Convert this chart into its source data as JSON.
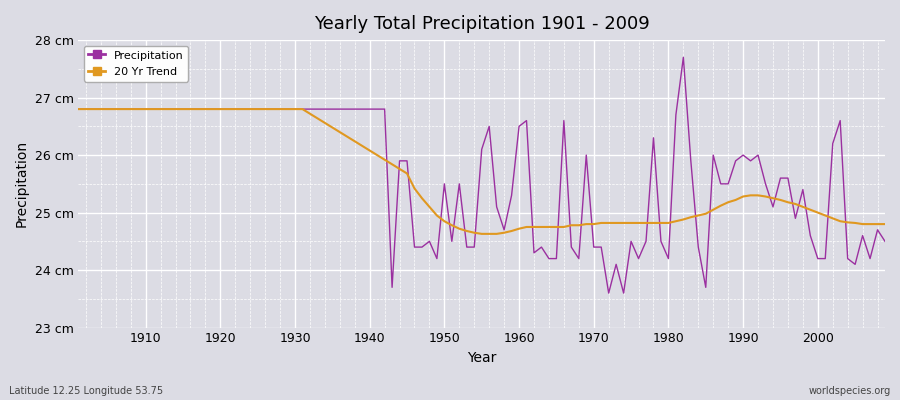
{
  "title": "Yearly Total Precipitation 1901 - 2009",
  "xlabel": "Year",
  "ylabel": "Precipitation",
  "subtitle": "Latitude 12.25 Longitude 53.75",
  "watermark": "worldspecies.org",
  "background_color": "#dcdce4",
  "plot_bg_color": "#dcdce4",
  "grid_color": "#ffffff",
  "precip_color": "#9b30a0",
  "trend_color": "#e09820",
  "ylim": [
    23.0,
    28.0
  ],
  "xlim": [
    1901,
    2009
  ],
  "yticks": [
    23,
    24,
    25,
    26,
    27,
    28
  ],
  "ytick_labels": [
    "23 cm",
    "24 cm",
    "25 cm",
    "26 cm",
    "27 cm",
    "28 cm"
  ],
  "xticks": [
    1910,
    1920,
    1930,
    1940,
    1950,
    1960,
    1970,
    1980,
    1990,
    2000
  ],
  "years": [
    1901,
    1902,
    1903,
    1904,
    1905,
    1906,
    1907,
    1908,
    1909,
    1910,
    1911,
    1912,
    1913,
    1914,
    1915,
    1916,
    1917,
    1918,
    1919,
    1920,
    1921,
    1922,
    1923,
    1924,
    1925,
    1926,
    1927,
    1928,
    1929,
    1930,
    1931,
    1932,
    1933,
    1934,
    1935,
    1936,
    1937,
    1938,
    1939,
    1940,
    1941,
    1942,
    1943,
    1944,
    1945,
    1946,
    1947,
    1948,
    1949,
    1950,
    1951,
    1952,
    1953,
    1954,
    1955,
    1956,
    1957,
    1958,
    1959,
    1960,
    1961,
    1962,
    1963,
    1964,
    1965,
    1966,
    1967,
    1968,
    1969,
    1970,
    1971,
    1972,
    1973,
    1974,
    1975,
    1976,
    1977,
    1978,
    1979,
    1980,
    1981,
    1982,
    1983,
    1984,
    1985,
    1986,
    1987,
    1988,
    1989,
    1990,
    1991,
    1992,
    1993,
    1994,
    1995,
    1996,
    1997,
    1998,
    1999,
    2000,
    2001,
    2002,
    2003,
    2004,
    2005,
    2006,
    2007,
    2008,
    2009
  ],
  "precip": [
    26.8,
    26.8,
    26.8,
    26.8,
    26.8,
    26.8,
    26.8,
    26.8,
    26.8,
    26.8,
    26.8,
    26.8,
    26.8,
    26.8,
    26.8,
    26.8,
    26.8,
    26.8,
    26.8,
    26.8,
    26.8,
    26.8,
    26.8,
    26.8,
    26.8,
    26.8,
    26.8,
    26.8,
    26.8,
    26.8,
    26.8,
    26.8,
    26.8,
    26.8,
    26.8,
    26.8,
    26.8,
    26.8,
    26.8,
    26.8,
    26.8,
    26.8,
    23.7,
    25.9,
    25.9,
    24.4,
    24.4,
    24.5,
    24.2,
    25.5,
    24.5,
    25.5,
    24.4,
    24.4,
    26.1,
    26.5,
    25.1,
    24.7,
    25.3,
    26.5,
    26.6,
    24.3,
    24.4,
    24.2,
    24.2,
    26.6,
    24.4,
    24.2,
    26.0,
    24.4,
    24.4,
    23.6,
    24.1,
    23.6,
    24.5,
    24.2,
    24.5,
    26.3,
    24.5,
    24.2,
    26.7,
    27.7,
    25.9,
    24.4,
    23.7,
    26.0,
    25.5,
    25.5,
    25.9,
    26.0,
    25.9,
    26.0,
    25.5,
    25.1,
    25.6,
    25.6,
    24.9,
    25.4,
    24.6,
    24.2,
    24.2,
    26.2,
    26.6,
    24.2,
    24.1,
    24.6,
    24.2,
    24.7,
    24.5
  ],
  "trend": [
    26.8,
    26.8,
    26.8,
    26.8,
    26.8,
    26.8,
    26.8,
    26.8,
    26.8,
    26.8,
    26.8,
    26.8,
    26.8,
    26.8,
    26.8,
    26.8,
    26.8,
    26.8,
    26.8,
    26.8,
    26.8,
    26.8,
    26.8,
    26.8,
    26.8,
    26.8,
    26.8,
    26.8,
    26.8,
    26.8,
    26.8,
    26.72,
    26.64,
    26.56,
    26.48,
    26.4,
    26.32,
    26.24,
    26.16,
    26.08,
    26.0,
    25.92,
    25.84,
    25.76,
    25.68,
    25.42,
    25.25,
    25.1,
    24.95,
    24.85,
    24.78,
    24.72,
    24.68,
    24.65,
    24.63,
    24.63,
    24.63,
    24.65,
    24.68,
    24.72,
    24.75,
    24.75,
    24.75,
    24.75,
    24.75,
    24.75,
    24.78,
    24.78,
    24.8,
    24.8,
    24.82,
    24.82,
    24.82,
    24.82,
    24.82,
    24.82,
    24.82,
    24.82,
    24.82,
    24.82,
    24.85,
    24.88,
    24.92,
    24.95,
    24.98,
    25.05,
    25.12,
    25.18,
    25.22,
    25.28,
    25.3,
    25.3,
    25.28,
    25.25,
    25.22,
    25.18,
    25.15,
    25.1,
    25.05,
    25.0,
    24.95,
    24.9,
    24.85,
    24.83,
    24.82,
    24.8,
    24.8,
    24.8,
    24.8
  ]
}
